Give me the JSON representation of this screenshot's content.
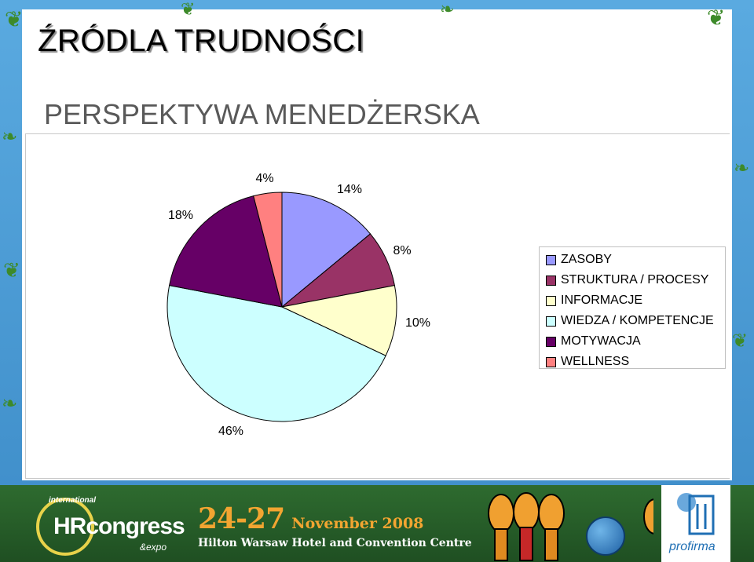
{
  "slide": {
    "title": "ŹRÓDLA TRUDNOŚCI",
    "subtitle": "PERSPEKTYWA MENEDŻERSKA"
  },
  "chart_data": {
    "type": "pie",
    "title": "",
    "start_angle": 0,
    "direction": "clockwise",
    "legend_position": "right",
    "slices": [
      {
        "name": "ZASOBY",
        "value": 14,
        "label": "14%",
        "color": "#9999ff"
      },
      {
        "name": "STRUKTURA / PROCESY",
        "value": 8,
        "label": "8%",
        "color": "#993366"
      },
      {
        "name": "INFORMACJE",
        "value": 10,
        "label": "10%",
        "color": "#ffffcc"
      },
      {
        "name": "WIEDZA / KOMPETENCJE",
        "value": 46,
        "label": "46%",
        "color": "#ccffff"
      },
      {
        "name": "MOTYWACJA",
        "value": 18,
        "label": "18%",
        "color": "#660066"
      },
      {
        "name": "WELLNESS",
        "value": 4,
        "label": "4%",
        "color": "#ff8080"
      }
    ]
  },
  "footer": {
    "logo_intl": "international",
    "logo_main": "HRcongress",
    "logo_expo": "&expo",
    "event_days": "24-27",
    "event_month": "November 2008",
    "event_venue": "Hilton Warsaw Hotel and Convention Centre",
    "brand_name": "profirma"
  }
}
